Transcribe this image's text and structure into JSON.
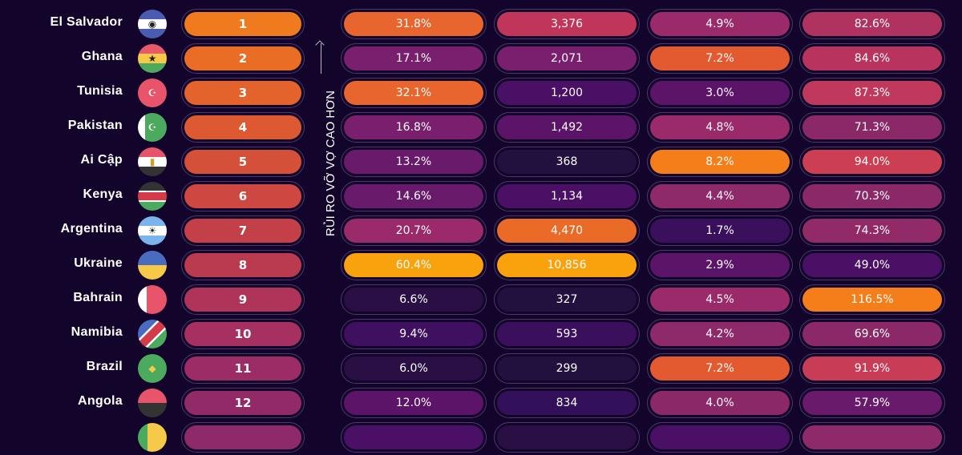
{
  "axis_label": "RỦI RO VỠ VỢ CAO HƠN",
  "rows": [
    {
      "country": "El Salvador",
      "flag": "el-salvador-flag",
      "rank": "1",
      "rank_color": "#f07a1e",
      "cells": [
        [
          "31.8%",
          "#e8652e"
        ],
        [
          "3,376",
          "#c0365a"
        ],
        [
          "4.9%",
          "#9a2a6a"
        ],
        [
          "82.6%",
          "#b0325e"
        ]
      ]
    },
    {
      "country": "Ghana",
      "flag": "ghana-flag",
      "rank": "2",
      "rank_color": "#ea6d26",
      "cells": [
        [
          "17.1%",
          "#7a1f6e"
        ],
        [
          "2,071",
          "#7a1f6e"
        ],
        [
          "7.2%",
          "#e45a30"
        ],
        [
          "84.6%",
          "#b8345e"
        ]
      ]
    },
    {
      "country": "Tunisia",
      "flag": "tunisia-flag",
      "rank": "3",
      "rank_color": "#e4632c",
      "cells": [
        [
          "32.1%",
          "#e8652e"
        ],
        [
          "1,200",
          "#4a1066"
        ],
        [
          "3.0%",
          "#5c1468"
        ],
        [
          "87.3%",
          "#c0385c"
        ]
      ]
    },
    {
      "country": "Pakistan",
      "flag": "pakistan-flag",
      "rank": "4",
      "rank_color": "#dc5932",
      "cells": [
        [
          "16.8%",
          "#7a1f6e"
        ],
        [
          "1,492",
          "#5c1468"
        ],
        [
          "4.8%",
          "#9a2a6a"
        ],
        [
          "71.3%",
          "#8a2868"
        ]
      ]
    },
    {
      "country": "Ai Cập",
      "flag": "egypt-flag",
      "rank": "5",
      "rank_color": "#d45038",
      "cells": [
        [
          "13.2%",
          "#6a1a6a"
        ],
        [
          "368",
          "#22103f"
        ],
        [
          "8.2%",
          "#f47e1a"
        ],
        [
          "94.0%",
          "#cc3e52"
        ]
      ]
    },
    {
      "country": "Kenya",
      "flag": "kenya-flag",
      "rank": "6",
      "rank_color": "#cc4840",
      "cells": [
        [
          "14.6%",
          "#6a1a6a"
        ],
        [
          "1,134",
          "#4a1066"
        ],
        [
          "4.4%",
          "#8e2a6a"
        ],
        [
          "70.3%",
          "#8a2868"
        ]
      ]
    },
    {
      "country": "Argentina",
      "flag": "argentina-flag",
      "rank": "7",
      "rank_color": "#c44048",
      "cells": [
        [
          "20.7%",
          "#9a2a6a"
        ],
        [
          "4,470",
          "#ea6a28"
        ],
        [
          "1.7%",
          "#3a0f5c"
        ],
        [
          "74.3%",
          "#922a68"
        ]
      ]
    },
    {
      "country": "Ukraine",
      "flag": "ukraine-flag",
      "rank": "8",
      "rank_color": "#ba3a50",
      "cells": [
        [
          "60.4%",
          "#f9a20e"
        ],
        [
          "10,856",
          "#f9a20e"
        ],
        [
          "2.9%",
          "#5c1468"
        ],
        [
          "49.0%",
          "#4a1066"
        ]
      ]
    },
    {
      "country": "Bahrain",
      "flag": "bahrain-flag",
      "rank": "9",
      "rank_color": "#b0345a",
      "cells": [
        [
          "6.6%",
          "#2a0f45"
        ],
        [
          "327",
          "#22103f"
        ],
        [
          "4.5%",
          "#9a2a6a"
        ],
        [
          "116.5%",
          "#f47e1a"
        ]
      ]
    },
    {
      "country": "Namibia",
      "flag": "namibia-flag",
      "rank": "10",
      "rank_color": "#a63060",
      "cells": [
        [
          "9.4%",
          "#3f0f60"
        ],
        [
          "593",
          "#3a0f5c"
        ],
        [
          "4.2%",
          "#8e2a6a"
        ],
        [
          "69.6%",
          "#8a2868"
        ]
      ]
    },
    {
      "country": "Brazil",
      "flag": "brazil-flag",
      "rank": "11",
      "rank_color": "#9c2c66",
      "cells": [
        [
          "6.0%",
          "#2a0f45"
        ],
        [
          "299",
          "#22103f"
        ],
        [
          "7.2%",
          "#e45a30"
        ],
        [
          "91.9%",
          "#c83c55"
        ]
      ]
    },
    {
      "country": "Angola",
      "flag": "angola-flag",
      "rank": "12",
      "rank_color": "#922a68",
      "cells": [
        [
          "12.0%",
          "#5c1468"
        ],
        [
          "834",
          "#33105a"
        ],
        [
          "4.0%",
          "#8a2868"
        ],
        [
          "57.9%",
          "#6a1a6a"
        ]
      ]
    },
    {
      "country": "",
      "flag": "partial-flag",
      "rank": "",
      "rank_color": "#8e2a6a",
      "cells": [
        [
          "",
          "#4a1066"
        ],
        [
          "",
          "#2a0f45"
        ],
        [
          "",
          "#4a1066"
        ],
        [
          "",
          "#8e2a6a"
        ]
      ]
    }
  ]
}
